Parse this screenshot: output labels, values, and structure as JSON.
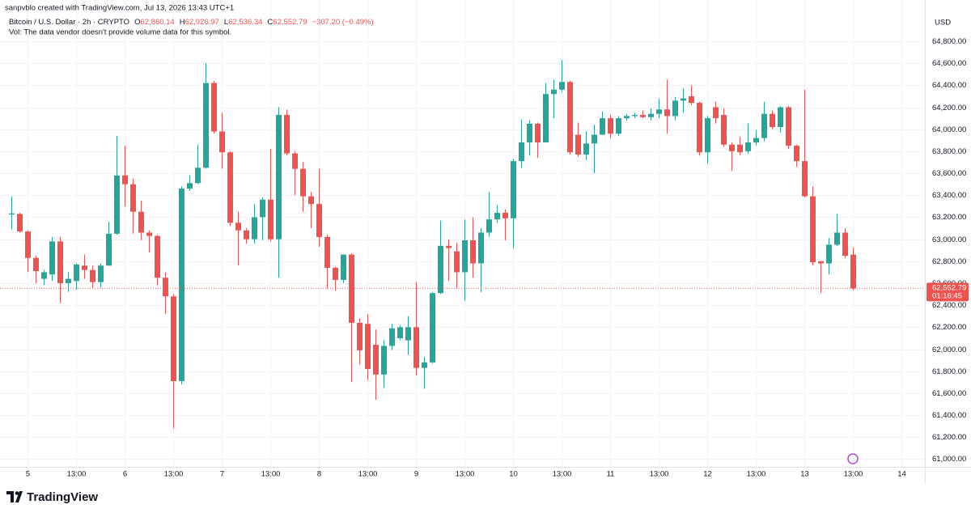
{
  "header": {
    "credit": "sanpvblo created with TradingView.com, Jul 13, 2026 13:43 UTC+1",
    "symbol": "Bitcoin / U.S. Dollar · 2h · CRYPTO",
    "ohlc": [
      {
        "key": "O",
        "value": "62,860.14"
      },
      {
        "key": "H",
        "value": "62,926.97"
      },
      {
        "key": "L",
        "value": "62,536.34"
      },
      {
        "key": "C",
        "value": "62,552.79"
      }
    ],
    "change": "−307.20 (−0.49%)",
    "volume_note": "Vol: The data vendor doesn't provide volume data for this symbol."
  },
  "footer": {
    "brand": "TradingView"
  },
  "chart_data": {
    "type": "candlestick",
    "currency": "USD",
    "up_color": "#26a69a",
    "down_color": "#ef5350",
    "grid": true,
    "x": [
      -3,
      -1,
      1,
      3,
      5,
      7,
      9,
      11,
      13,
      15,
      17,
      19,
      21,
      23,
      25,
      27,
      29,
      31,
      33,
      35,
      37,
      39,
      41,
      43,
      45,
      47,
      49,
      51,
      53,
      55,
      57,
      59,
      61,
      63,
      65,
      67,
      69,
      71,
      73,
      75,
      77,
      79,
      81,
      83,
      85,
      87,
      89,
      91,
      93,
      95,
      97,
      99,
      101,
      103,
      105,
      107,
      109,
      111,
      113,
      115,
      117,
      119,
      121,
      123,
      125,
      127,
      129,
      131,
      133,
      135,
      137,
      139,
      141,
      143,
      145,
      147,
      149,
      151,
      153,
      155,
      157,
      159,
      161,
      163,
      165,
      167,
      169,
      171,
      173,
      175,
      177,
      179,
      181,
      183,
      185,
      187,
      189,
      191,
      193,
      195,
      197,
      199,
      201,
      203,
      205
    ],
    "open": [
      63225,
      63230,
      63070,
      62830,
      62640,
      62680,
      62980,
      62600,
      62620,
      62760,
      62720,
      62610,
      62760,
      63050,
      63580,
      63500,
      63250,
      63060,
      63030,
      62650,
      62480,
      61710,
      63460,
      63510,
      63650,
      64420,
      63980,
      63790,
      63150,
      63080,
      63000,
      63200,
      63360,
      63000,
      64130,
      63780,
      63640,
      63390,
      63320,
      63020,
      62740,
      62630,
      62860,
      62240,
      62230,
      62040,
      61770,
      62030,
      62100,
      62080,
      62200,
      61830,
      61880,
      62510,
      62940,
      62890,
      62700,
      62990,
      62780,
      63060,
      63180,
      63240,
      63190,
      63710,
      63880,
      64050,
      63880,
      64320,
      64360,
      64430,
      63950,
      63770,
      63870,
      63950,
      64100,
      63960,
      64100,
      64120,
      64130,
      64110,
      64140,
      64180,
      64120,
      64260,
      64300,
      64240,
      63790,
      64200,
      64130,
      63860,
      63860,
      63800,
      63880,
      63920,
      64140,
      64020,
      64200,
      63850,
      63710,
      63390,
      62800,
      62780,
      62950,
      63060,
      62860.14
    ],
    "high": [
      63390,
      63240,
      63080,
      62850,
      62720,
      63020,
      63020,
      62700,
      62780,
      62860,
      62760,
      62780,
      63160,
      63940,
      63850,
      63550,
      63350,
      63080,
      63040,
      62700,
      62500,
      63480,
      63580,
      63860,
      64600,
      64440,
      64150,
      63800,
      63250,
      63100,
      63320,
      63380,
      63820,
      64200,
      64180,
      63800,
      63700,
      63430,
      63640,
      63040,
      62750,
      62860,
      62870,
      62280,
      62320,
      62180,
      62080,
      62230,
      62220,
      62300,
      62610,
      61930,
      62520,
      63170,
      63000,
      62970,
      63180,
      63200,
      63100,
      63430,
      63310,
      63270,
      63730,
      64090,
      64080,
      64060,
      64420,
      64450,
      64630,
      64440,
      64060,
      63980,
      64040,
      64160,
      64130,
      64120,
      64140,
      64150,
      64170,
      64190,
      64280,
      64450,
      64290,
      64370,
      64400,
      64250,
      64120,
      64250,
      64190,
      63880,
      63930,
      64050,
      63990,
      64250,
      64170,
      64210,
      64210,
      63860,
      64360,
      63480,
      62800,
      63010,
      63230,
      63100,
      62926.97
    ],
    "low": [
      63090,
      63060,
      62700,
      62600,
      62580,
      62620,
      62420,
      62520,
      62540,
      62640,
      62560,
      62560,
      62760,
      63040,
      63300,
      63050,
      62990,
      62880,
      62580,
      62320,
      61280,
      61680,
      63440,
      63500,
      63640,
      63960,
      63640,
      63120,
      62760,
      62960,
      62960,
      62990,
      62980,
      62650,
      63760,
      63400,
      63250,
      63100,
      62930,
      62550,
      62530,
      62600,
      61700,
      61860,
      61720,
      61540,
      61650,
      61990,
      62080,
      61950,
      61760,
      61640,
      61870,
      62500,
      62620,
      62560,
      62440,
      62650,
      62520,
      63020,
      63150,
      62990,
      62920,
      63650,
      63760,
      63740,
      63880,
      64100,
      64340,
      63770,
      63750,
      63720,
      63600,
      63950,
      63920,
      63940,
      64080,
      64100,
      64100,
      64080,
      64100,
      63960,
      64080,
      64150,
      64220,
      63760,
      63690,
      64050,
      63840,
      63620,
      63760,
      63780,
      63850,
      63890,
      64000,
      63970,
      63820,
      63660,
      63380,
      62760,
      62510,
      62680,
      62940,
      62830,
      62536.34
    ],
    "close": [
      63235,
      63070,
      62830,
      62710,
      62700,
      62980,
      62600,
      62640,
      62770,
      62720,
      62610,
      62760,
      63050,
      63580,
      63500,
      63250,
      63060,
      63030,
      62650,
      62480,
      61710,
      63460,
      63510,
      63650,
      64420,
      63980,
      63790,
      63150,
      63080,
      63000,
      63200,
      63360,
      63000,
      64130,
      63780,
      63640,
      63390,
      63320,
      63020,
      62740,
      62630,
      62860,
      62240,
      61990,
      61820,
      61770,
      62030,
      62190,
      62200,
      62200,
      61830,
      61880,
      62510,
      62940,
      62920,
      62700,
      62990,
      62780,
      63060,
      63180,
      63240,
      63190,
      63710,
      63880,
      64050,
      63880,
      64320,
      64360,
      64430,
      63790,
      63770,
      63870,
      63950,
      64100,
      63960,
      64100,
      64120,
      64130,
      64110,
      64140,
      64180,
      64120,
      64260,
      64280,
      64240,
      63790,
      64100,
      64100,
      63860,
      63800,
      63790,
      63880,
      63920,
      64140,
      64020,
      64200,
      63850,
      63710,
      63390,
      62790,
      62780,
      62950,
      63060,
      62850,
      62552.79
    ],
    "xlim": [
      -4.8,
      222.2
    ],
    "xticks": [
      {
        "value": 1,
        "label": "5"
      },
      {
        "value": 13,
        "label": "13:00"
      },
      {
        "value": 25,
        "label": "6"
      },
      {
        "value": 37,
        "label": "13:00"
      },
      {
        "value": 49,
        "label": "7"
      },
      {
        "value": 61,
        "label": "13:00"
      },
      {
        "value": 73,
        "label": "8"
      },
      {
        "value": 85,
        "label": "13:00"
      },
      {
        "value": 97,
        "label": "9"
      },
      {
        "value": 109,
        "label": "13:00"
      },
      {
        "value": 121,
        "label": "10"
      },
      {
        "value": 133,
        "label": "13:00"
      },
      {
        "value": 145,
        "label": "11"
      },
      {
        "value": 157,
        "label": "13:00"
      },
      {
        "value": 169,
        "label": "12"
      },
      {
        "value": 181,
        "label": "13:00"
      },
      {
        "value": 193,
        "label": "13"
      },
      {
        "value": 205,
        "label": "13:00"
      },
      {
        "value": 217,
        "label": "14"
      }
    ],
    "ylim": [
      60930,
      65175
    ],
    "yticks": [
      {
        "value": 61000,
        "label": "61,000.00"
      },
      {
        "value": 61200,
        "label": "61,200.00"
      },
      {
        "value": 61400,
        "label": "61,400.00"
      },
      {
        "value": 61600,
        "label": "61,600.00"
      },
      {
        "value": 61800,
        "label": "61,800.00"
      },
      {
        "value": 62000,
        "label": "62,000.00"
      },
      {
        "value": 62200,
        "label": "62,200.00"
      },
      {
        "value": 62400,
        "label": "62,400.00"
      },
      {
        "value": 62600,
        "label": "62,600.00"
      },
      {
        "value": 62800,
        "label": "62,800.00"
      },
      {
        "value": 63000,
        "label": "63,000.00"
      },
      {
        "value": 63200,
        "label": "63,200.00"
      },
      {
        "value": 63400,
        "label": "63,400.00"
      },
      {
        "value": 63600,
        "label": "63,600.00"
      },
      {
        "value": 63800,
        "label": "63,800.00"
      },
      {
        "value": 64000,
        "label": "64,000.00"
      },
      {
        "value": 64200,
        "label": "64,200.00"
      },
      {
        "value": 64400,
        "label": "64,400.00"
      },
      {
        "value": 64600,
        "label": "64,600.00"
      },
      {
        "value": 64800,
        "label": "64,800.00"
      }
    ],
    "last_price": {
      "value": 62552.79,
      "label": "62,552.79"
    },
    "countdown": "01:16:45"
  }
}
